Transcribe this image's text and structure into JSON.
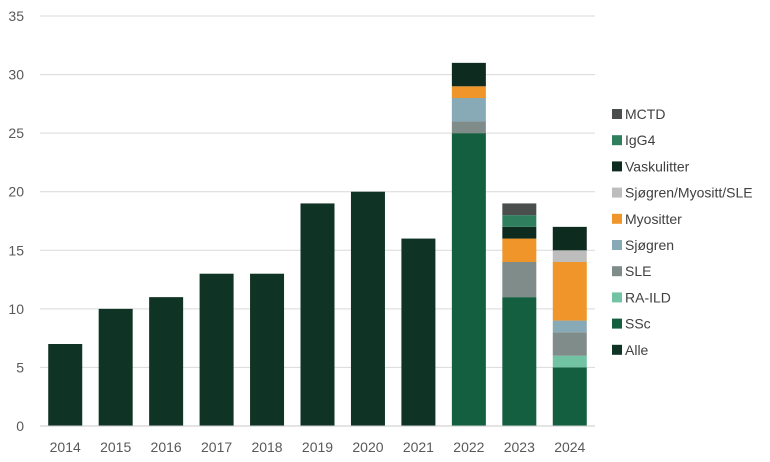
{
  "chart_data": {
    "type": "bar",
    "stacked": true,
    "categories": [
      "2014",
      "2015",
      "2016",
      "2017",
      "2018",
      "2019",
      "2020",
      "2021",
      "2022",
      "2023",
      "2024"
    ],
    "ylim": [
      0,
      35
    ],
    "yticks": [
      0,
      5,
      10,
      15,
      20,
      25,
      30,
      35
    ],
    "grid": true,
    "legend_position": "right",
    "series": [
      {
        "name": "Alle",
        "color": "#0f3324",
        "values": [
          7,
          10,
          11,
          13,
          13,
          19,
          20,
          16,
          0,
          0,
          0
        ]
      },
      {
        "name": "SSc",
        "color": "#145f3f",
        "values": [
          0,
          0,
          0,
          0,
          0,
          0,
          0,
          0,
          25,
          11,
          5
        ]
      },
      {
        "name": "RA-ILD",
        "color": "#72c2a4",
        "values": [
          0,
          0,
          0,
          0,
          0,
          0,
          0,
          0,
          0,
          0,
          1
        ]
      },
      {
        "name": "SLE",
        "color": "#7f8c89",
        "values": [
          0,
          0,
          0,
          0,
          0,
          0,
          0,
          0,
          1,
          3,
          2
        ]
      },
      {
        "name": "Sjøgren",
        "color": "#88aab7",
        "values": [
          0,
          0,
          0,
          0,
          0,
          0,
          0,
          0,
          2,
          0,
          1
        ]
      },
      {
        "name": "Myositter",
        "color": "#f0952a",
        "values": [
          0,
          0,
          0,
          0,
          0,
          0,
          0,
          0,
          1,
          2,
          5
        ]
      },
      {
        "name": "Sjøgren/Myositt/SLE",
        "color": "#bdbdbd",
        "values": [
          0,
          0,
          0,
          0,
          0,
          0,
          0,
          0,
          0,
          0,
          1
        ]
      },
      {
        "name": "Vaskulitter",
        "color": "#0d2b1f",
        "values": [
          0,
          0,
          0,
          0,
          0,
          0,
          0,
          0,
          2,
          1,
          2
        ]
      },
      {
        "name": "IgG4",
        "color": "#2f7f5e",
        "values": [
          0,
          0,
          0,
          0,
          0,
          0,
          0,
          0,
          0,
          1,
          0
        ]
      },
      {
        "name": "MCTD",
        "color": "#4a4f4d",
        "values": [
          0,
          0,
          0,
          0,
          0,
          0,
          0,
          0,
          0,
          1,
          0
        ]
      }
    ]
  }
}
